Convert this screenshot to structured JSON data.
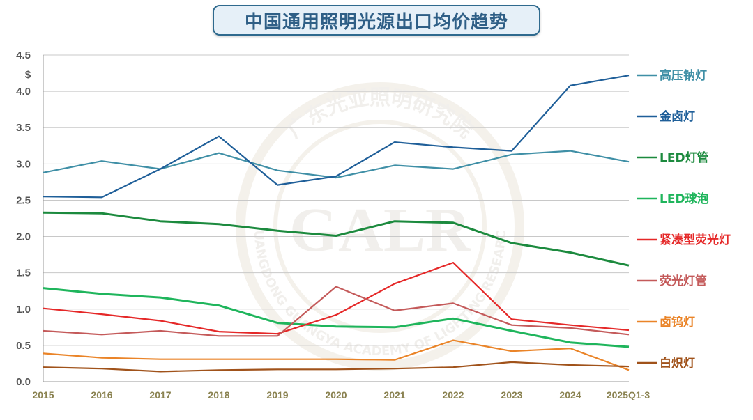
{
  "chart_data": {
    "type": "line",
    "title": "中国通用照明光源出口均价趋势",
    "ylabel": "$",
    "ylim": [
      0,
      4.5
    ],
    "yticks": [
      "0.0",
      "0.5",
      "1.0",
      "1.5",
      "2.0",
      "2.5",
      "3.0",
      "3.5",
      "4.0",
      "4.5"
    ],
    "grid": true,
    "legend_position": "right",
    "categories": [
      "2015",
      "2016",
      "2017",
      "2018",
      "2019",
      "2020",
      "2021",
      "2022",
      "2023",
      "2024",
      "2025Q1-3"
    ],
    "series": [
      {
        "name": "高压钠灯",
        "color": "#3f8fa6",
        "values": [
          2.88,
          3.04,
          2.93,
          3.15,
          2.91,
          2.81,
          2.98,
          2.93,
          3.13,
          3.18,
          3.03
        ]
      },
      {
        "name": "金卤灯",
        "color": "#1f5f99",
        "values": [
          2.55,
          2.54,
          2.93,
          3.38,
          2.71,
          2.83,
          3.3,
          3.23,
          3.18,
          4.08,
          4.22
        ]
      },
      {
        "name": "LED灯管",
        "color": "#1c8a3e",
        "values": [
          2.33,
          2.32,
          2.21,
          2.17,
          2.08,
          2.01,
          2.21,
          2.19,
          1.91,
          1.78,
          1.6
        ]
      },
      {
        "name": "LED球泡",
        "color": "#1fb55c",
        "values": [
          1.29,
          1.21,
          1.16,
          1.05,
          0.81,
          0.76,
          0.75,
          0.87,
          0.7,
          0.54,
          0.48
        ]
      },
      {
        "name": "紧凑型荧光灯",
        "color": "#e52828",
        "values": [
          1.01,
          0.93,
          0.84,
          0.69,
          0.66,
          0.92,
          1.35,
          1.64,
          0.86,
          0.78,
          0.71
        ]
      },
      {
        "name": "荧光灯管",
        "color": "#c45a5a",
        "values": [
          0.7,
          0.65,
          0.7,
          0.63,
          0.63,
          1.31,
          0.98,
          1.08,
          0.78,
          0.74,
          0.65
        ]
      },
      {
        "name": "卤钨灯",
        "color": "#ea8428",
        "values": [
          0.39,
          0.33,
          0.31,
          0.31,
          0.31,
          0.31,
          0.3,
          0.57,
          0.42,
          0.46,
          0.16
        ]
      },
      {
        "name": "白炽灯",
        "color": "#a0521a",
        "values": [
          0.2,
          0.18,
          0.14,
          0.16,
          0.17,
          0.17,
          0.18,
          0.2,
          0.27,
          0.23,
          0.21
        ]
      }
    ]
  },
  "watermark": {
    "logo_text": "GALR",
    "ring_text_cn": "广东光亚照明研究院",
    "ring_text_en": "GUANGDONG GUANGYA ACADEMY OF LIGHTING RESEARCH"
  }
}
